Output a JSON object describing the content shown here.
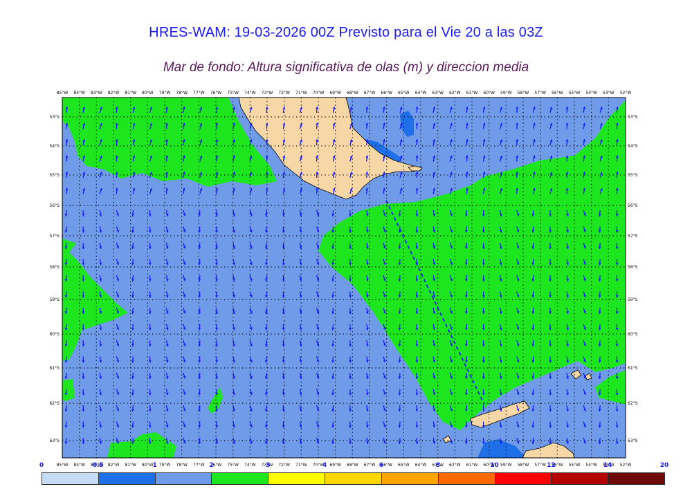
{
  "title": "HRES-WAM: 19-03-2026 00Z Previsto para el Vie 20 a las 03Z",
  "subtitle": "Mar de fondo: Altura significativa de olas (m) y direccion media",
  "longitudes": [
    "85°W",
    "84°W",
    "83°W",
    "82°W",
    "81°W",
    "80°W",
    "79°W",
    "78°W",
    "77°W",
    "76°W",
    "75°W",
    "74°W",
    "73°W",
    "72°W",
    "71°W",
    "70°W",
    "69°W",
    "68°W",
    "67°W",
    "66°W",
    "65°W",
    "64°W",
    "63°W",
    "62°W",
    "61°W",
    "60°W",
    "59°W",
    "58°W",
    "57°W",
    "56°W",
    "55°W",
    "54°W",
    "53°W",
    "52°W"
  ],
  "latitudes": [
    "53°S",
    "54°S",
    "55°S",
    "56°S",
    "57°S",
    "58°S",
    "59°S",
    "60°S",
    "61°S",
    "62°S",
    "63°S"
  ],
  "colorbar": {
    "labels": [
      "0",
      "0.5",
      "1",
      "2",
      "3",
      "4",
      "6",
      "8",
      "10",
      "12",
      "14",
      "20"
    ],
    "colors": [
      "#c5dcf5",
      "#1f6fe8",
      "#6f9be8",
      "#1ee61e",
      "#ffff00",
      "#ffd700",
      "#ffa500",
      "#ff6a00",
      "#ff0000",
      "#b40000",
      "#6e0a0a",
      "#3a3a3a"
    ]
  },
  "colors": {
    "sea_low": "#6f9be8",
    "sea_mid": "#1ee61e",
    "sea_deep": "#1f6fe8",
    "land": "#f7d7a6",
    "coast": "#000000",
    "arrow": "#1a1aff"
  }
}
